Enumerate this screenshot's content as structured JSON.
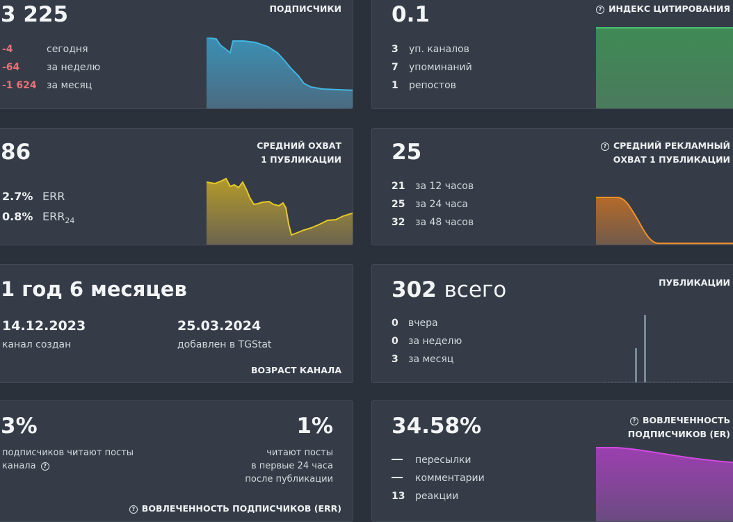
{
  "subscribers": {
    "title": "ПОДПИСЧИКИ",
    "value": "3 225",
    "stats": [
      {
        "num": "-4",
        "label": "сегодня"
      },
      {
        "num": "-64",
        "label": "за неделю"
      },
      {
        "num": "-1 624",
        "label": "за месяц"
      }
    ],
    "color": "#4aa8cf"
  },
  "citation": {
    "title": "ИНДЕКС ЦИТИРОВАНИЯ",
    "value": "0.1",
    "stats": [
      {
        "num": "3",
        "label": "уп. каналов"
      },
      {
        "num": "7",
        "label": "упоминаний"
      },
      {
        "num": "1",
        "label": "репостов"
      }
    ],
    "color": "#3fa868"
  },
  "reach": {
    "title_line1": "СРЕДНИЙ ОХВАТ",
    "title_line2": "1 ПУБЛИКАЦИИ",
    "value": "86",
    "err": {
      "num": "2.7%",
      "label": "ERR"
    },
    "err24": {
      "num": "0.8%",
      "label": "ERR",
      "sub": "24"
    },
    "color": "#e0c020"
  },
  "ad_reach": {
    "title_line1": "СРЕДНИЙ РЕКЛАМНЫЙ",
    "title_line2": "ОХВАТ 1 ПУБЛИКАЦИИ",
    "value": "25",
    "stats": [
      {
        "num": "21",
        "label": "за 12 часов"
      },
      {
        "num": "25",
        "label": "за 24 часа"
      },
      {
        "num": "32",
        "label": "за 48 часов"
      }
    ],
    "color": "#f0902a"
  },
  "age": {
    "value": "1 год 6 месяцев",
    "created_date": "14.12.2023",
    "created_label": "канал создан",
    "added_date": "25.03.2024",
    "added_label": "добавлен в TGStat",
    "title": "ВОЗРАСТ КАНАЛА"
  },
  "posts": {
    "title": "ПУБЛИКАЦИИ",
    "value_num": "302",
    "value_word": "всего",
    "stats": [
      {
        "num": "0",
        "label": "вчера"
      },
      {
        "num": "0",
        "label": "за неделю"
      },
      {
        "num": "3",
        "label": "за месяц"
      }
    ]
  },
  "err_card": {
    "left_value": "3%",
    "left_line1": "подписчиков читают посты",
    "left_line2": "канала",
    "right_value": "1%",
    "right_line1": "читают посты",
    "right_line2": "в первые 24 часа",
    "right_line3": "после публикации",
    "title": "ВОВЛЕЧЕННОСТЬ ПОДПИСЧИКОВ (ERR)"
  },
  "er_card": {
    "title_line1": "ВОВЛЕЧЕННОСТЬ",
    "title_line2": "ПОДПИСЧИКОВ (ER)",
    "value": "34.58%",
    "stats": [
      {
        "num": "—",
        "label": "пересылки"
      },
      {
        "num": "—",
        "label": "комментарии"
      },
      {
        "num": "13",
        "label": "реакции"
      }
    ],
    "color": "#c84ad8"
  }
}
